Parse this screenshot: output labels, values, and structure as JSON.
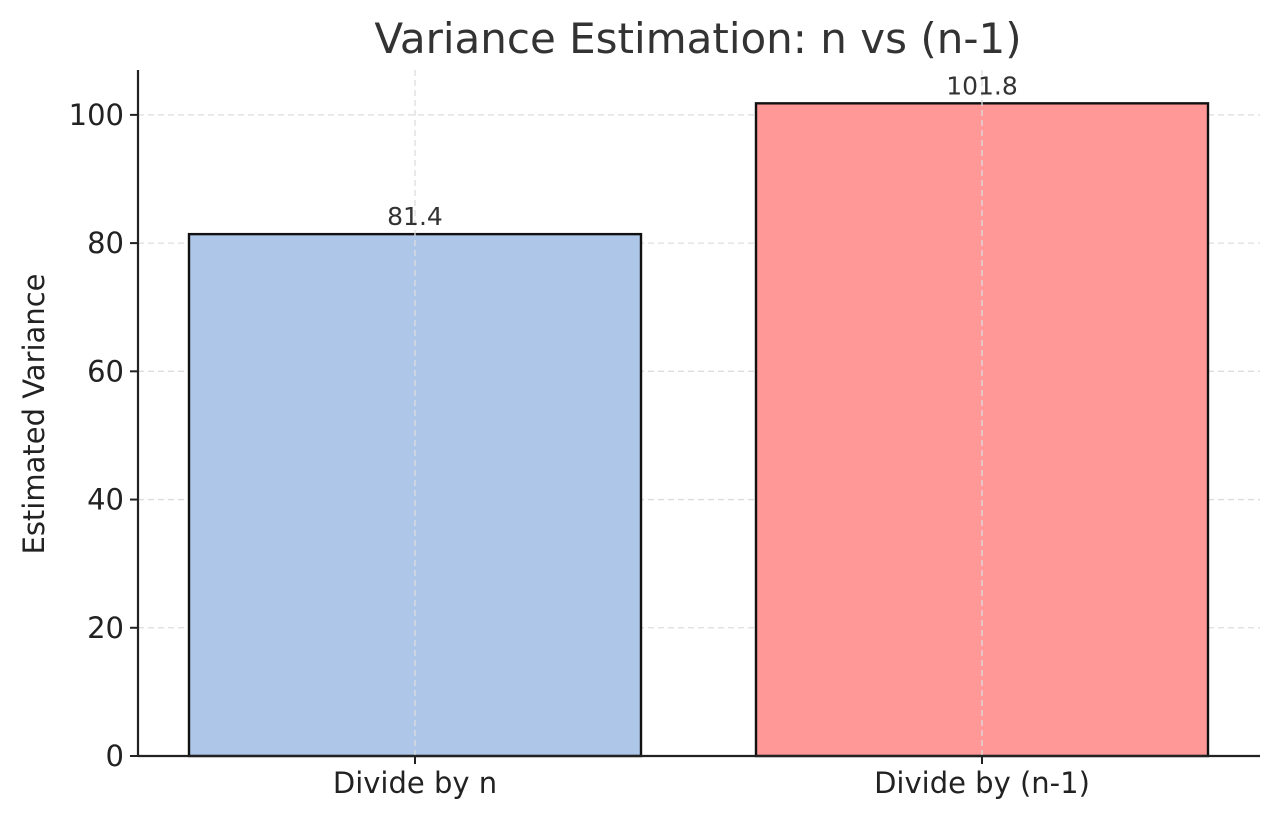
{
  "chart_data": {
    "type": "bar",
    "title": "Variance Estimation: n vs (n-1)",
    "xlabel": "",
    "ylabel": "Estimated Variance",
    "categories": [
      "Divide by n",
      "Divide by (n-1)"
    ],
    "values": [
      81.4,
      101.8
    ],
    "value_labels": [
      "81.4",
      "101.8"
    ],
    "colors": [
      "#aec6e8",
      "#ff9896"
    ],
    "ylim": [
      0,
      107
    ],
    "yticks": [
      0,
      20,
      40,
      60,
      80,
      100
    ],
    "grid": true,
    "legend": "none"
  }
}
